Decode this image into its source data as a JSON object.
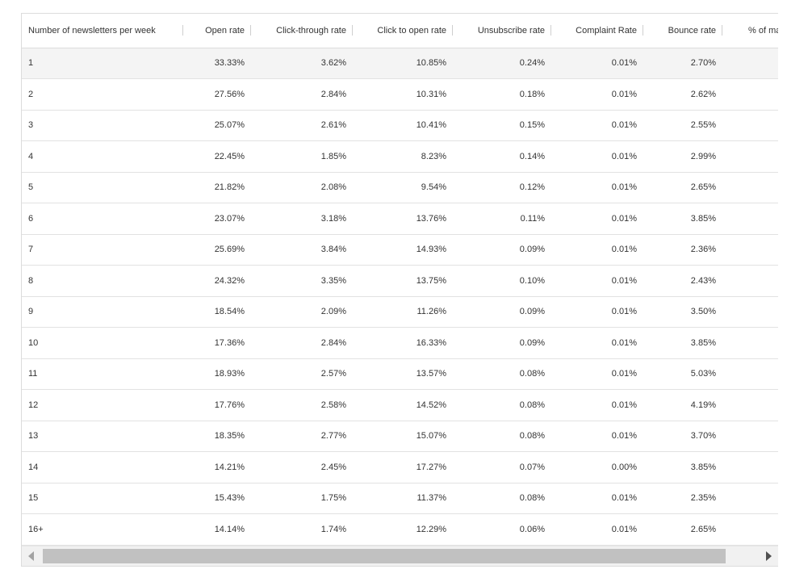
{
  "table": {
    "headers": [
      "Number of newsletters per week",
      "Open rate",
      "Click-through rate",
      "Click to open rate",
      "Unsubscribe rate",
      "Complaint Rate",
      "Bounce rate",
      "% of ma"
    ],
    "rows": [
      [
        "1",
        "33.33%",
        "3.62%",
        "10.85%",
        "0.24%",
        "0.01%",
        "2.70%",
        ""
      ],
      [
        "2",
        "27.56%",
        "2.84%",
        "10.31%",
        "0.18%",
        "0.01%",
        "2.62%",
        ""
      ],
      [
        "3",
        "25.07%",
        "2.61%",
        "10.41%",
        "0.15%",
        "0.01%",
        "2.55%",
        ""
      ],
      [
        "4",
        "22.45%",
        "1.85%",
        "8.23%",
        "0.14%",
        "0.01%",
        "2.99%",
        ""
      ],
      [
        "5",
        "21.82%",
        "2.08%",
        "9.54%",
        "0.12%",
        "0.01%",
        "2.65%",
        ""
      ],
      [
        "6",
        "23.07%",
        "3.18%",
        "13.76%",
        "0.11%",
        "0.01%",
        "3.85%",
        ""
      ],
      [
        "7",
        "25.69%",
        "3.84%",
        "14.93%",
        "0.09%",
        "0.01%",
        "2.36%",
        ""
      ],
      [
        "8",
        "24.32%",
        "3.35%",
        "13.75%",
        "0.10%",
        "0.01%",
        "2.43%",
        ""
      ],
      [
        "9",
        "18.54%",
        "2.09%",
        "11.26%",
        "0.09%",
        "0.01%",
        "3.50%",
        ""
      ],
      [
        "10",
        "17.36%",
        "2.84%",
        "16.33%",
        "0.09%",
        "0.01%",
        "3.85%",
        ""
      ],
      [
        "11",
        "18.93%",
        "2.57%",
        "13.57%",
        "0.08%",
        "0.01%",
        "5.03%",
        ""
      ],
      [
        "12",
        "17.76%",
        "2.58%",
        "14.52%",
        "0.08%",
        "0.01%",
        "4.19%",
        ""
      ],
      [
        "13",
        "18.35%",
        "2.77%",
        "15.07%",
        "0.08%",
        "0.01%",
        "3.70%",
        ""
      ],
      [
        "14",
        "14.21%",
        "2.45%",
        "17.27%",
        "0.07%",
        "0.00%",
        "3.85%",
        ""
      ],
      [
        "15",
        "15.43%",
        "1.75%",
        "11.37%",
        "0.08%",
        "0.01%",
        "2.35%",
        ""
      ],
      [
        "16+",
        "14.14%",
        "1.74%",
        "12.29%",
        "0.06%",
        "0.01%",
        "2.65%",
        ""
      ]
    ],
    "highlighted_row": 0
  },
  "scrollbar": {
    "left_icon": "chevron-left-icon",
    "right_icon": "chevron-right-icon"
  }
}
